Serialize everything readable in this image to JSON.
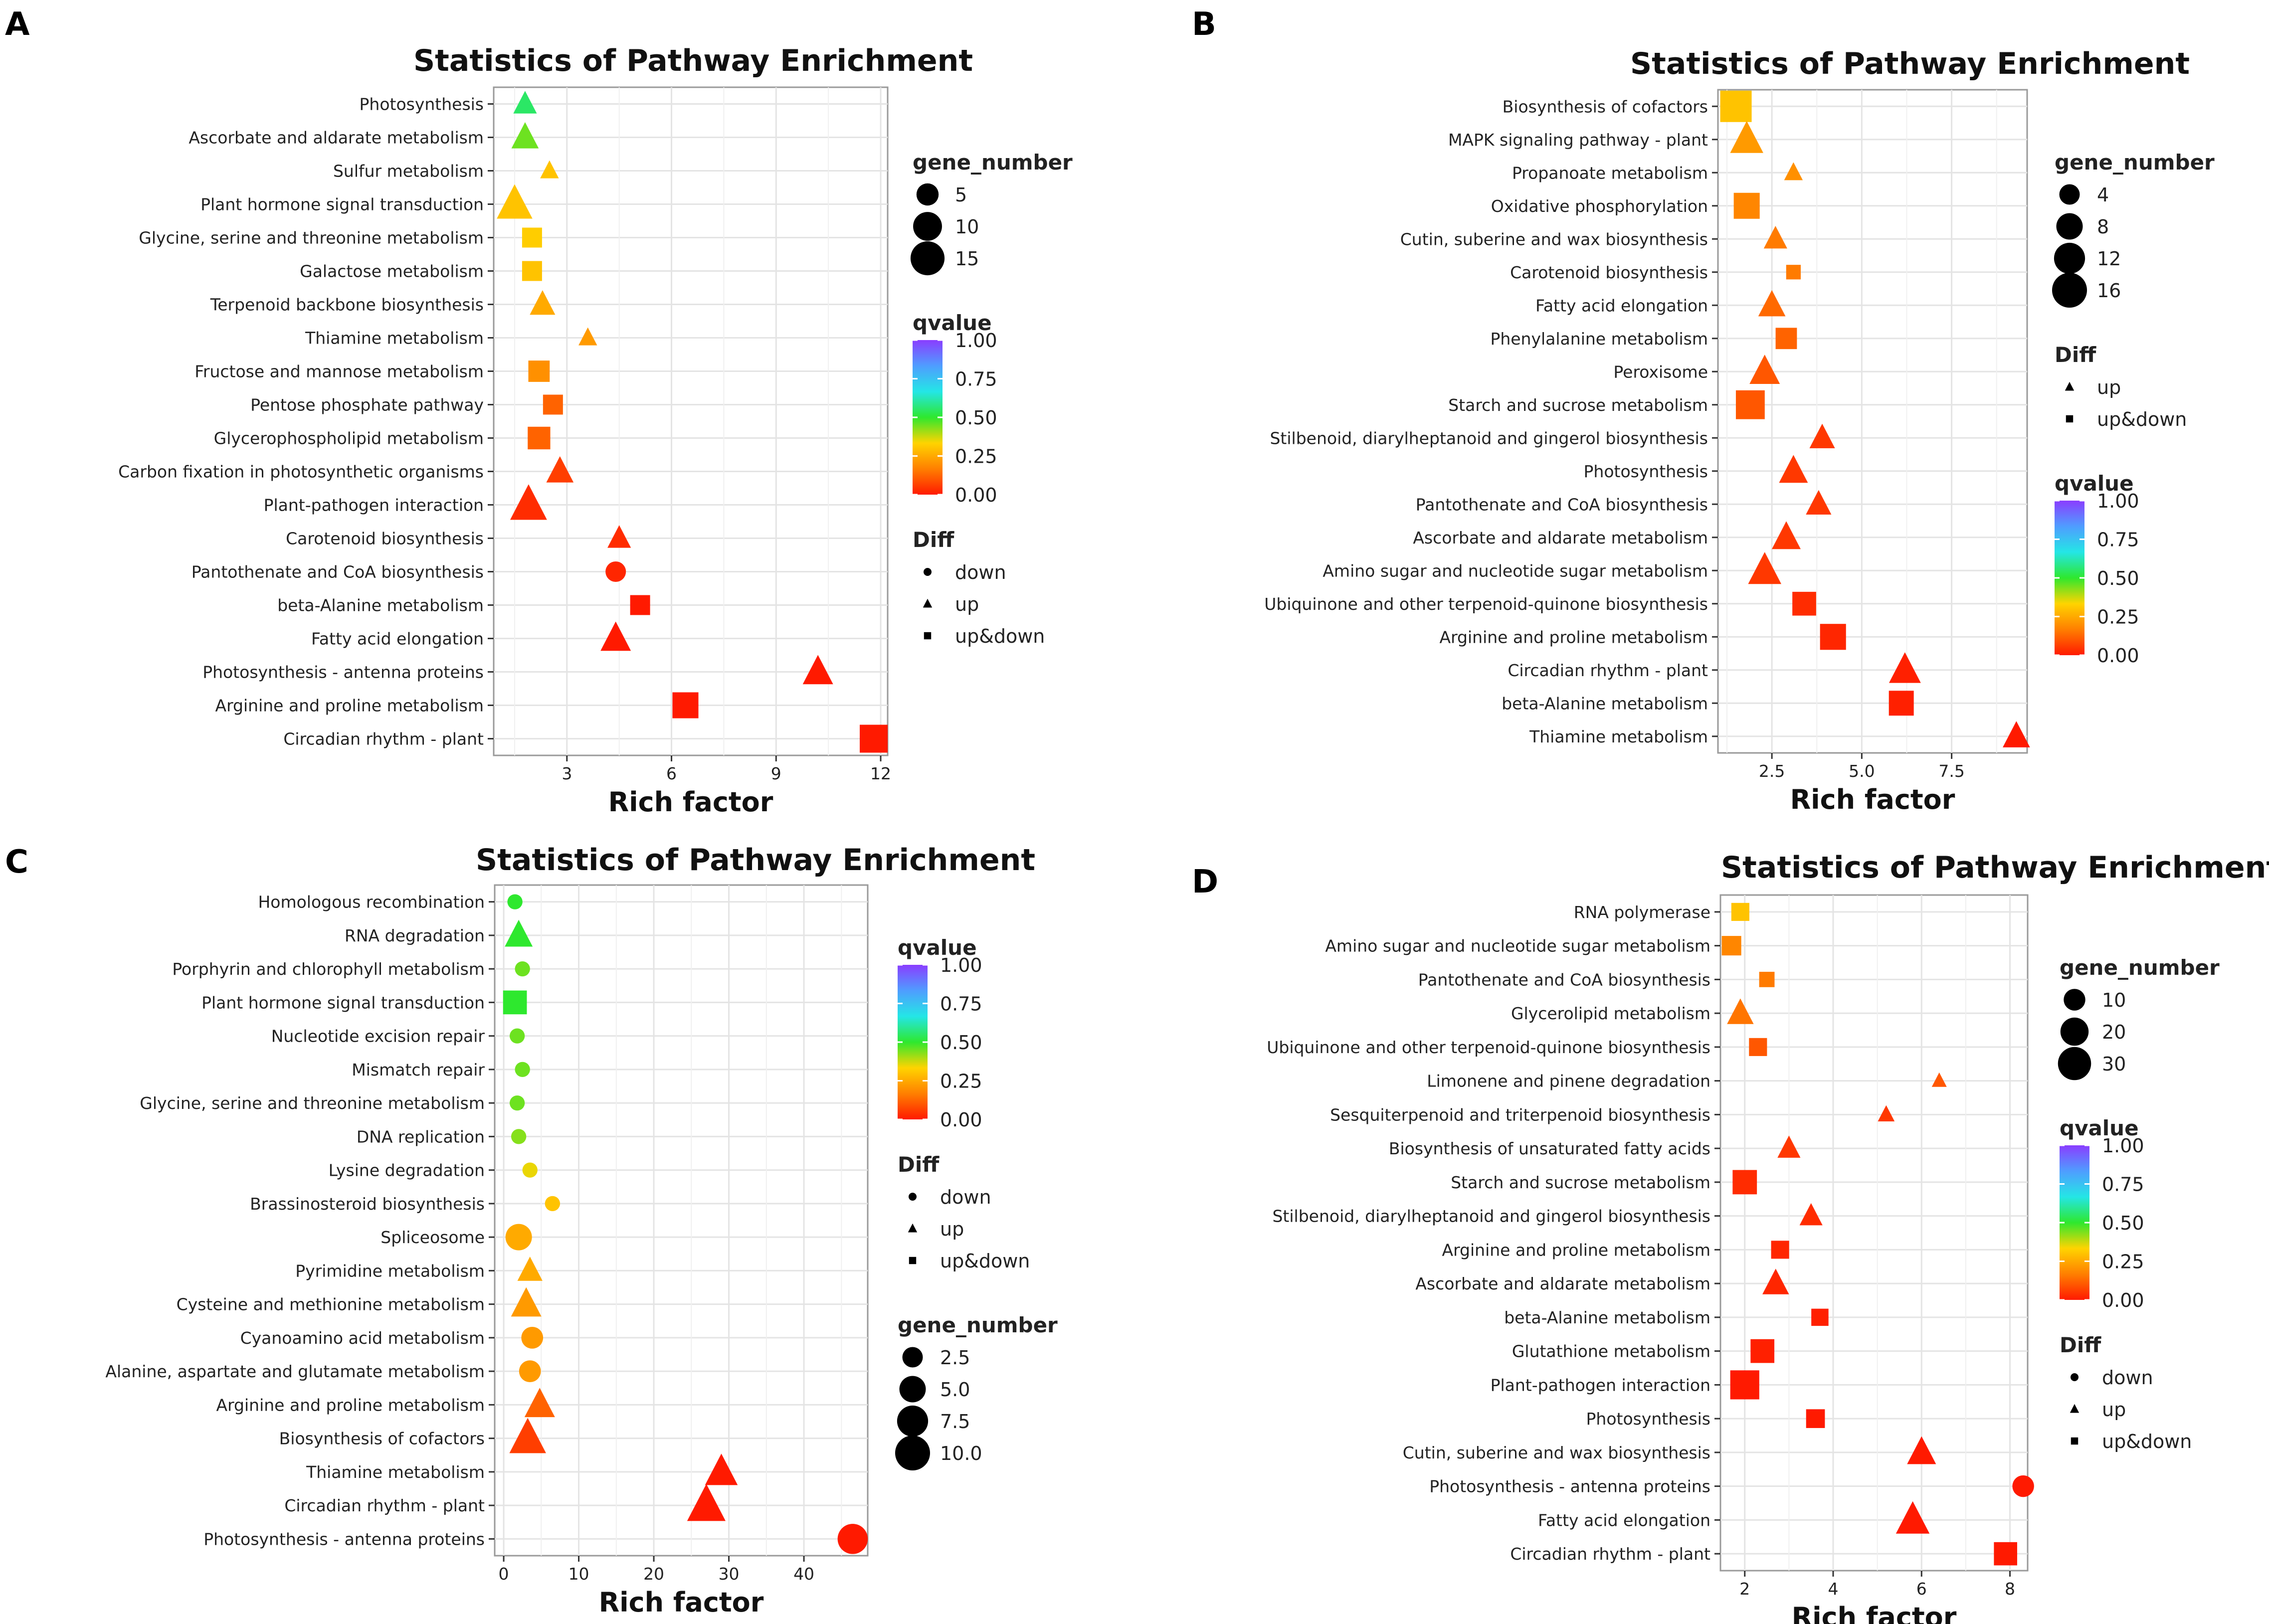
{
  "figure": {
    "scale_legend": [
      "0.00",
      "0.25",
      "0.50",
      "0.75",
      "1.00"
    ],
    "qvalue_colors": [
      "#ff1a00",
      "#ff7f00",
      "#ffd400",
      "#2ee82e",
      "#24e6e6",
      "#4f9dff",
      "#8a3dff"
    ],
    "marker_symbols": {
      "down": "circle",
      "up": "triangle",
      "up&down": "square"
    }
  },
  "chart_data": [
    {
      "panel_label": "A",
      "type": "scatter",
      "title": "Statistics of Pathway Enrichment",
      "xlabel": "Rich factor",
      "ylabel": "",
      "xlim": [
        0.9,
        12.2
      ],
      "xticks": [
        3,
        6,
        9,
        12
      ],
      "xtick_labels": [
        "3",
        "6",
        "9",
        "12"
      ],
      "legend_order": [
        "size",
        "color",
        "shape"
      ],
      "size_legend": {
        "title": "gene_number",
        "values": [
          5,
          10,
          15
        ],
        "labels": [
          "5",
          "10",
          "15"
        ],
        "max": 16
      },
      "color_legend": {
        "title": "qvalue",
        "labels": [
          "1.00",
          "0.75",
          "0.50",
          "0.25",
          "0.00"
        ]
      },
      "shape_legend": {
        "title": "Diff",
        "entries": [
          "down",
          "up",
          "up&down"
        ]
      },
      "pathways": [
        "Photosynthesis",
        "Ascorbate and aldarate metabolism",
        "Sulfur metabolism",
        "Plant hormone signal transduction",
        "Glycine, serine and threonine metabolism",
        "Galactose metabolism",
        "Terpenoid backbone biosynthesis",
        "Thiamine metabolism",
        "Fructose and mannose metabolism",
        "Pentose phosphate pathway",
        "Glycerophospholipid metabolism",
        "Carbon fixation in photosynthetic organisms",
        "Plant-pathogen interaction",
        "Carotenoid biosynthesis",
        "Pantothenate and CoA biosynthesis",
        "beta-Alanine metabolism",
        "Fatty acid elongation",
        "Photosynthesis - antenna proteins",
        "Arginine and proline metabolism",
        "Circadian rhythm - plant"
      ],
      "rich_factor": [
        1.8,
        1.8,
        2.5,
        1.5,
        2.0,
        2.0,
        2.3,
        3.6,
        2.2,
        2.6,
        2.2,
        2.8,
        1.9,
        4.5,
        4.4,
        5.1,
        4.4,
        10.2,
        6.4,
        11.8
      ],
      "gene_number": [
        4,
        6,
        2,
        12,
        5,
        5,
        5,
        2,
        6,
        5,
        7,
        6,
        13,
        4,
        4,
        5,
        8,
        8,
        10,
        12
      ],
      "qvalue": [
        0.55,
        0.45,
        0.3,
        0.3,
        0.32,
        0.3,
        0.25,
        0.22,
        0.2,
        0.12,
        0.12,
        0.06,
        0.03,
        0.03,
        0.02,
        0.0,
        0.0,
        0.0,
        0.0,
        0.0
      ],
      "diff": [
        "up",
        "up",
        "up",
        "up",
        "up&down",
        "up&down",
        "up",
        "up",
        "up&down",
        "up&down",
        "up&down",
        "up",
        "up",
        "up",
        "down",
        "up&down",
        "up",
        "up",
        "up&down",
        "up&down"
      ]
    },
    {
      "panel_label": "B",
      "type": "scatter",
      "title": "Statistics of Pathway Enrichment",
      "xlabel": "Rich factor",
      "ylabel": "",
      "xlim": [
        1.0,
        9.6
      ],
      "xticks": [
        2.5,
        5.0,
        7.5
      ],
      "xtick_labels": [
        "2.5",
        "5.0",
        "7.5"
      ],
      "legend_order": [
        "size",
        "shape",
        "color"
      ],
      "size_legend": {
        "title": "gene_number",
        "values": [
          4,
          8,
          12,
          16
        ],
        "labels": [
          "4",
          "8",
          "12",
          "16"
        ],
        "max": 16
      },
      "color_legend": {
        "title": "qvalue",
        "labels": [
          "1.00",
          "0.75",
          "0.50",
          "0.25",
          "0.00"
        ]
      },
      "shape_legend": {
        "title": "Diff",
        "entries": [
          "up",
          "up&down"
        ]
      },
      "pathways": [
        "Biosynthesis of cofactors",
        "MAPK signaling pathway - plant",
        "Propanoate metabolism",
        "Oxidative phosphorylation",
        "Cutin, suberine and wax biosynthesis",
        "Carotenoid biosynthesis",
        "Fatty acid elongation",
        "Phenylalanine metabolism",
        "Peroxisome",
        "Starch and sucrose metabolism",
        "Stilbenoid, diarylheptanoid and gingerol biosynthesis",
        "Photosynthesis",
        "Pantothenate and CoA biosynthesis",
        "Ascorbate and aldarate metabolism",
        "Amino sugar and nucleotide sugar metabolism",
        "Ubiquinone and other terpenoid-quinone biosynthesis",
        "Arginine and proline metabolism",
        "Circadian rhythm - plant",
        "beta-Alanine metabolism",
        "Thiamine metabolism"
      ],
      "rich_factor": [
        1.5,
        1.8,
        3.1,
        1.8,
        2.6,
        3.1,
        2.5,
        2.9,
        2.3,
        1.9,
        3.9,
        3.1,
        3.8,
        2.9,
        2.3,
        3.4,
        4.2,
        6.2,
        6.1,
        9.3
      ],
      "gene_number": [
        16,
        10,
        2,
        10,
        4,
        2,
        6,
        6,
        8,
        13,
        5,
        7,
        5,
        7,
        10,
        8,
        10,
        9,
        9,
        6
      ],
      "qvalue": [
        0.3,
        0.22,
        0.2,
        0.18,
        0.16,
        0.16,
        0.13,
        0.12,
        0.1,
        0.1,
        0.05,
        0.05,
        0.05,
        0.05,
        0.05,
        0.03,
        0.02,
        0.01,
        0.01,
        0.0
      ],
      "diff": [
        "up&down",
        "up",
        "up",
        "up&down",
        "up",
        "up&down",
        "up",
        "up&down",
        "up",
        "up&down",
        "up",
        "up",
        "up",
        "up",
        "up",
        "up&down",
        "up&down",
        "up",
        "up&down",
        "up"
      ]
    },
    {
      "panel_label": "C",
      "type": "scatter",
      "title": "Statistics of Pathway Enrichment",
      "xlabel": "Rich factor",
      "ylabel": "",
      "xlim": [
        -1.2,
        48.5
      ],
      "xticks": [
        0,
        10,
        20,
        30,
        40
      ],
      "xtick_labels": [
        "0",
        "10",
        "20",
        "30",
        "40"
      ],
      "legend_order": [
        "color",
        "shape",
        "size"
      ],
      "size_legend": {
        "title": "gene_number",
        "values": [
          2.5,
          5.0,
          7.5,
          10.0
        ],
        "labels": [
          "2.5",
          "5.0",
          "7.5",
          "10.0"
        ],
        "max": 10
      },
      "color_legend": {
        "title": "qvalue",
        "labels": [
          "1.00",
          "0.75",
          "0.50",
          "0.25",
          "0.00"
        ]
      },
      "shape_legend": {
        "title": "Diff",
        "entries": [
          "down",
          "up",
          "up&down"
        ]
      },
      "pathways": [
        "Homologous recombination",
        "RNA degradation",
        "Porphyrin and chlorophyll metabolism",
        "Plant hormone signal transduction",
        "Nucleotide excision repair",
        "Mismatch repair",
        "Glycine, serine and threonine metabolism",
        "DNA replication",
        "Lysine degradation",
        "Brassinosteroid biosynthesis",
        "Spliceosome",
        "Pyrimidine metabolism",
        "Cysteine and methionine metabolism",
        "Cyanoamino acid metabolism",
        "Alanine, aspartate and glutamate metabolism",
        "Arginine and proline metabolism",
        "Biosynthesis of cofactors",
        "Thiamine metabolism",
        "Circadian rhythm - plant",
        "Photosynthesis - antenna proteins"
      ],
      "rich_factor": [
        1.5,
        2.0,
        2.5,
        1.5,
        1.8,
        2.5,
        1.8,
        2.0,
        3.5,
        6.5,
        2.0,
        3.5,
        3.0,
        3.8,
        3.5,
        4.8,
        3.2,
        29.0,
        27.0,
        46.5
      ],
      "gene_number": [
        1,
        4,
        1,
        5,
        1,
        1,
        1,
        1,
        1,
        1,
        5,
        3,
        5,
        3,
        3,
        5,
        8,
        6,
        9,
        7
      ],
      "qvalue": [
        0.5,
        0.5,
        0.45,
        0.5,
        0.45,
        0.45,
        0.45,
        0.43,
        0.35,
        0.3,
        0.25,
        0.25,
        0.22,
        0.22,
        0.22,
        0.12,
        0.06,
        0.0,
        0.0,
        0.0
      ],
      "diff": [
        "down",
        "up",
        "down",
        "up&down",
        "down",
        "down",
        "down",
        "down",
        "down",
        "down",
        "down",
        "up",
        "up",
        "down",
        "down",
        "up",
        "up",
        "up",
        "up",
        "down"
      ]
    },
    {
      "panel_label": "D",
      "type": "scatter",
      "title": "Statistics of Pathway Enrichment",
      "xlabel": "Rich factor",
      "ylabel": "",
      "xlim": [
        1.45,
        8.4
      ],
      "xticks": [
        2,
        4,
        6,
        8
      ],
      "xtick_labels": [
        "2",
        "4",
        "6",
        "8"
      ],
      "legend_order": [
        "size",
        "color",
        "shape"
      ],
      "size_legend": {
        "title": "gene_number",
        "values": [
          10,
          20,
          30
        ],
        "labels": [
          "10",
          "20",
          "30"
        ],
        "max": 34
      },
      "color_legend": {
        "title": "qvalue",
        "labels": [
          "1.00",
          "0.75",
          "0.50",
          "0.25",
          "0.00"
        ]
      },
      "shape_legend": {
        "title": "Diff",
        "entries": [
          "down",
          "up",
          "up&down"
        ]
      },
      "pathways": [
        "RNA polymerase",
        "Amino sugar and nucleotide sugar metabolism",
        "Pantothenate and CoA biosynthesis",
        "Glycerolipid metabolism",
        "Ubiquinone and other terpenoid-quinone biosynthesis",
        "Limonene and pinene degradation",
        "Sesquiterpenoid and triterpenoid biosynthesis",
        "Biosynthesis of unsaturated fatty acids",
        "Starch and sucrose metabolism",
        "Stilbenoid, diarylheptanoid and gingerol biosynthesis",
        "Arginine and proline metabolism",
        "Ascorbate and aldarate metabolism",
        "beta-Alanine metabolism",
        "Glutathione metabolism",
        "Plant-pathogen interaction",
        "Photosynthesis",
        "Cutin, suberine and wax biosynthesis",
        "Photosynthesis - antenna proteins",
        "Fatty acid elongation",
        "Circadian rhythm - plant"
      ],
      "rich_factor": [
        1.9,
        1.7,
        2.5,
        1.9,
        2.3,
        6.4,
        5.2,
        3.0,
        2.0,
        3.5,
        2.8,
        2.7,
        3.7,
        2.4,
        2.0,
        3.6,
        6.0,
        8.3,
        5.8,
        7.9
      ],
      "gene_number": [
        8,
        10,
        5,
        12,
        8,
        2,
        3,
        8,
        18,
        8,
        8,
        12,
        7,
        17,
        28,
        9,
        15,
        10,
        22,
        16
      ],
      "qvalue": [
        0.3,
        0.18,
        0.16,
        0.15,
        0.1,
        0.1,
        0.05,
        0.05,
        0.03,
        0.03,
        0.02,
        0.02,
        0.01,
        0.01,
        0.0,
        0.0,
        0.0,
        0.0,
        0.0,
        0.0
      ],
      "diff": [
        "up&down",
        "up&down",
        "up&down",
        "up",
        "up&down",
        "up",
        "up",
        "up",
        "up&down",
        "up",
        "up&down",
        "up",
        "up&down",
        "up&down",
        "up&down",
        "up&down",
        "up",
        "down",
        "up",
        "up&down"
      ]
    }
  ]
}
